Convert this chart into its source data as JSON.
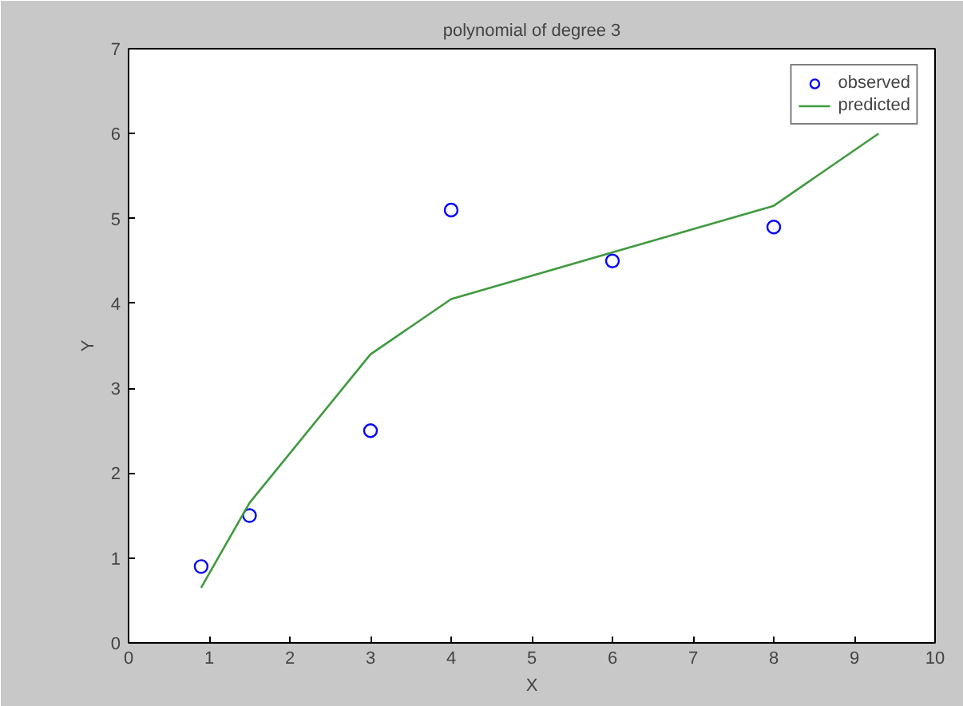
{
  "chart_data": {
    "type": "scatter",
    "title": "polynomial of degree 3",
    "xlabel": "X",
    "ylabel": "Y",
    "xlim": [
      0,
      10
    ],
    "ylim": [
      0,
      7
    ],
    "xticks": [
      0,
      1,
      2,
      3,
      4,
      5,
      6,
      7,
      8,
      9,
      10
    ],
    "yticks": [
      0,
      1,
      2,
      3,
      4,
      5,
      6,
      7
    ],
    "grid": false,
    "legend": "top right",
    "series": [
      {
        "name": "observed",
        "marker": "circle",
        "color": "#0000ff",
        "x": [
          0.9,
          1.5,
          3,
          4,
          6,
          8
        ],
        "values": [
          0.9,
          1.5,
          2.5,
          5.1,
          4.5,
          4.9
        ]
      },
      {
        "name": "predicted",
        "type": "line",
        "marker": "none",
        "line_style": "solid",
        "color": "#3f9a3f",
        "x": [
          0.9,
          1.5,
          3,
          4,
          6,
          8,
          9.3
        ],
        "values": [
          0.65,
          1.65,
          3.4,
          4.05,
          4.6,
          5.15,
          6.0
        ]
      }
    ]
  }
}
